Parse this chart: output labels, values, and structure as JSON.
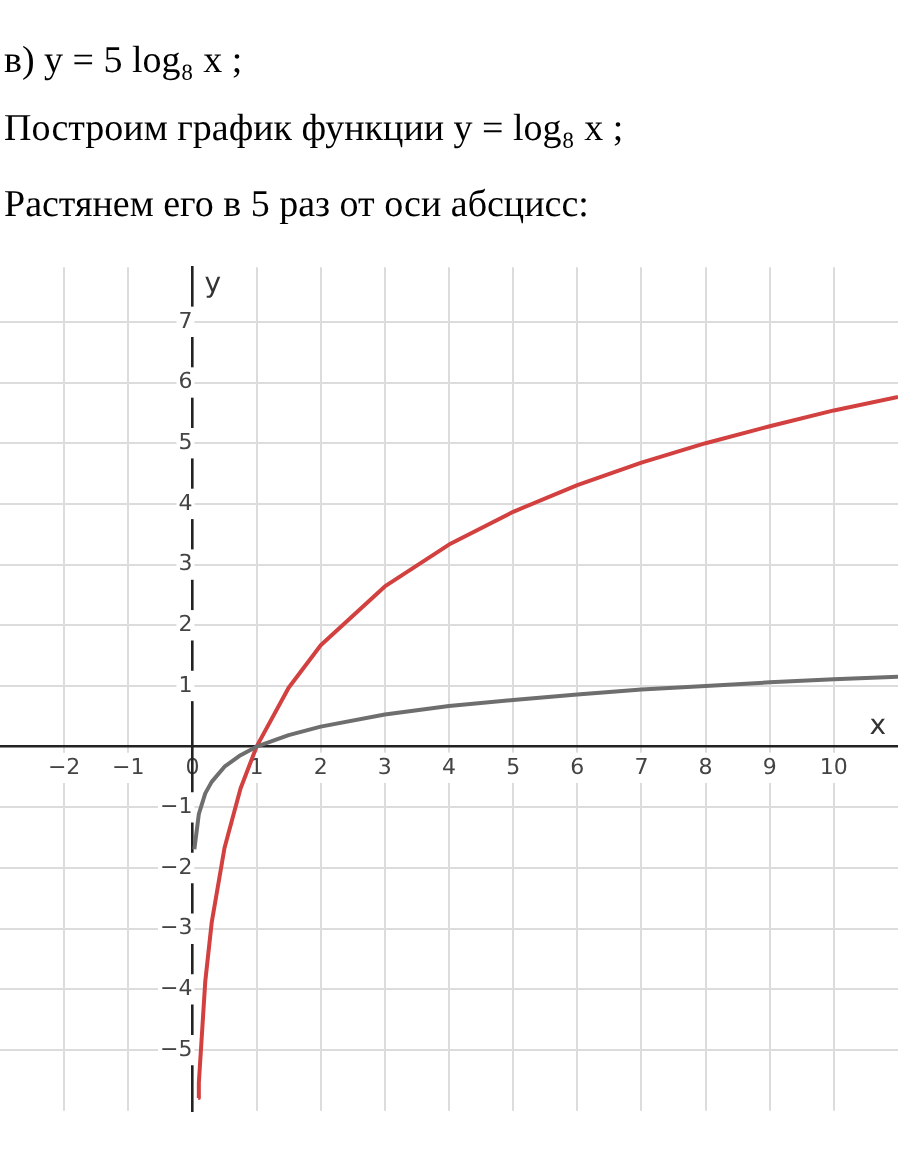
{
  "chart_data": {
    "type": "line",
    "title": "в) y = 5 log₈ x ;",
    "subtitle": "Построим график функции y = log₈ x ;",
    "annotations": [
      "Растянем его в 5 раз от оси абсцисс:"
    ],
    "xlabel": "x",
    "ylabel": "y",
    "xlim": [
      -3,
      11
    ],
    "ylim": [
      -6,
      7.9
    ],
    "xticks": [
      -2,
      -1,
      0,
      1,
      2,
      3,
      4,
      5,
      6,
      7,
      8,
      9,
      10
    ],
    "yticks": [
      -5,
      -4,
      -3,
      -2,
      -1,
      1,
      2,
      3,
      4,
      5,
      6,
      7
    ],
    "grid": true,
    "legend": false,
    "marker": "none",
    "series": [
      {
        "color": "#6e6e6e",
        "x": [
          0.03,
          0.1,
          0.2,
          0.3,
          0.5,
          0.75,
          1,
          1.5,
          2,
          3,
          4,
          5,
          6,
          7,
          8,
          9,
          10,
          11
        ],
        "values": [
          -1.69,
          -1.11,
          -0.77,
          -0.58,
          -0.33,
          -0.14,
          0,
          0.19,
          0.33,
          0.53,
          0.67,
          0.77,
          0.86,
          0.94,
          1,
          1.06,
          1.11,
          1.15
        ]
      },
      {
        "color": "#d2403f",
        "x": [
          0.09,
          0.1,
          0.2,
          0.3,
          0.5,
          0.75,
          1,
          1.5,
          2,
          3,
          4,
          5,
          6,
          7,
          8,
          9,
          10,
          11
        ],
        "values": [
          -5.79,
          -5.54,
          -3.87,
          -2.9,
          -1.67,
          -0.69,
          0,
          0.97,
          1.67,
          2.64,
          3.33,
          3.87,
          4.31,
          4.68,
          5,
          5.28,
          5.54,
          5.76
        ]
      }
    ]
  }
}
